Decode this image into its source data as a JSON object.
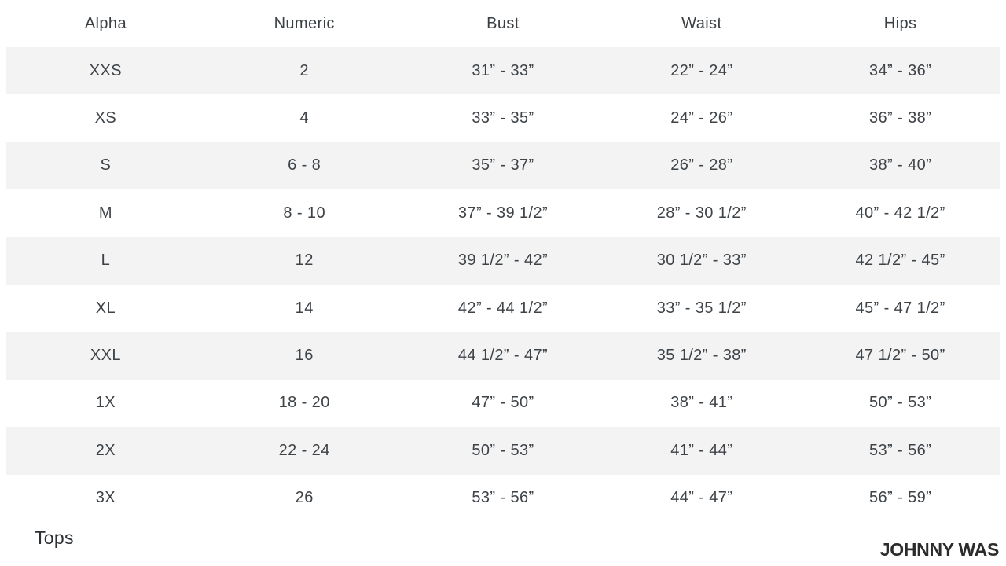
{
  "table": {
    "columns": [
      "Alpha",
      "Numeric",
      "Bust",
      "Waist",
      "Hips"
    ],
    "rows": [
      [
        "XXS",
        "2",
        "31” - 33”",
        "22” - 24”",
        "34” - 36”"
      ],
      [
        "XS",
        "4",
        "33” - 35”",
        "24” - 26”",
        "36” - 38”"
      ],
      [
        "S",
        "6 - 8",
        "35” - 37”",
        "26” - 28”",
        "38” - 40”"
      ],
      [
        "M",
        "8 - 10",
        "37” - 39 1/2”",
        "28” - 30 1/2”",
        "40” - 42 1/2”"
      ],
      [
        "L",
        "12",
        "39 1/2” - 42”",
        "30 1/2” - 33”",
        "42 1/2” - 45”"
      ],
      [
        "XL",
        "14",
        "42” - 44 1/2”",
        "33” - 35 1/2”",
        "45” - 47 1/2”"
      ],
      [
        "XXL",
        "16",
        "44 1/2” - 47”",
        "35 1/2” - 38”",
        "47 1/2” - 50”"
      ],
      [
        "1X",
        "18 - 20",
        "47” - 50”",
        "38” - 41”",
        "50” - 53”"
      ],
      [
        "2X",
        "22 - 24",
        "50” - 53”",
        "41” - 44”",
        "53” - 56”"
      ],
      [
        "3X",
        "26",
        "53” - 56”",
        "44” - 47”",
        "56” - 59”"
      ]
    ]
  },
  "footer": {
    "section_label": "Tops",
    "brand": "JOHNNY WAS"
  },
  "colors": {
    "background": "#ffffff",
    "stripe": "#f3f3f3",
    "text": "#3e4348",
    "brand_text": "#2b2b2b"
  }
}
